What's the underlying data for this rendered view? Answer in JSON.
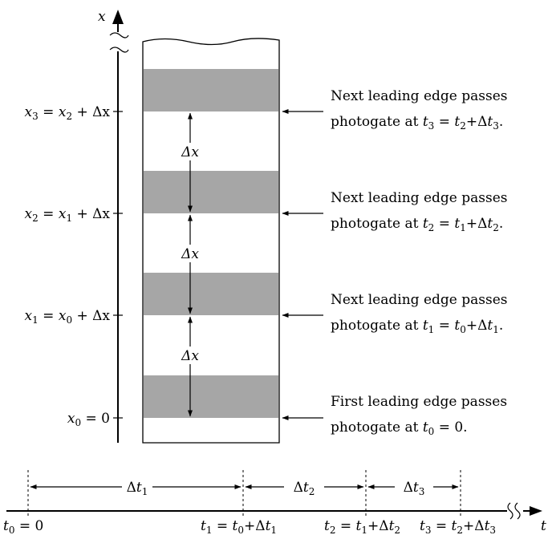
{
  "colors": {
    "band": "#a6a6a6",
    "line": "#000000",
    "background": "#ffffff"
  },
  "axes": {
    "x_label": "x",
    "t_label": "t"
  },
  "x_ticks": [
    {
      "lhs": "x",
      "lhs_sub": "3",
      "eq": " = ",
      "rhs": "x",
      "rhs_sub": "2",
      "tail": " + Δx"
    },
    {
      "lhs": "x",
      "lhs_sub": "2",
      "eq": " = ",
      "rhs": "x",
      "rhs_sub": "1",
      "tail": " + Δx"
    },
    {
      "lhs": "x",
      "lhs_sub": "1",
      "eq": " = ",
      "rhs": "x",
      "rhs_sub": "0",
      "tail": " + Δx"
    },
    {
      "lhs": "x",
      "lhs_sub": "0",
      "eq": " = ",
      "rhs": "0",
      "rhs_sub": "",
      "tail": ""
    }
  ],
  "spacing_label": "Δx",
  "annotations": [
    {
      "line1": "Next leading edge passes",
      "line2_prefix": "photogate at ",
      "t": "t",
      "t_sub": "3",
      "eq": " = ",
      "t2": "t",
      "t2_sub": "2",
      "plus": "+Δ",
      "t3": "t",
      "t3_sub": "3",
      "suffix": "."
    },
    {
      "line1": "Next leading edge passes",
      "line2_prefix": "photogate at ",
      "t": "t",
      "t_sub": "2",
      "eq": " = ",
      "t2": "t",
      "t2_sub": "1",
      "plus": "+Δ",
      "t3": "t",
      "t3_sub": "2",
      "suffix": "."
    },
    {
      "line1": "Next leading edge passes",
      "line2_prefix": "photogate at ",
      "t": "t",
      "t_sub": "1",
      "eq": " = ",
      "t2": "t",
      "t2_sub": "0",
      "plus": "+Δ",
      "t3": "t",
      "t3_sub": "1",
      "suffix": "."
    },
    {
      "line1": "First leading edge passes",
      "line2_prefix": "photogate at ",
      "t": "t",
      "t_sub": "0",
      "eq": " = 0.",
      "t2": "",
      "t2_sub": "",
      "plus": "",
      "t3": "",
      "t3_sub": "",
      "suffix": ""
    }
  ],
  "intervals": [
    {
      "d": "Δ",
      "t": "t",
      "sub": "1"
    },
    {
      "d": "Δ",
      "t": "t",
      "sub": "2"
    },
    {
      "d": "Δ",
      "t": "t",
      "sub": "3"
    }
  ],
  "t_ticks": [
    {
      "t": "t",
      "sub": "0",
      "rest": " = 0",
      "t2": "",
      "sub2": "",
      "d": "",
      "t3": "",
      "sub3": ""
    },
    {
      "t": "t",
      "sub": "1",
      "rest": " = ",
      "t2": "t",
      "sub2": "0",
      "d": "+Δ",
      "t3": "t",
      "sub3": "1"
    },
    {
      "t": "t",
      "sub": "2",
      "rest": " = ",
      "t2": "t",
      "sub2": "1",
      "d": "+Δ",
      "t3": "t",
      "sub3": "2"
    },
    {
      "t": "t",
      "sub": "3",
      "rest": " = ",
      "t2": "t",
      "sub2": "2",
      "d": "+Δ",
      "t3": "t",
      "sub3": "3"
    }
  ]
}
